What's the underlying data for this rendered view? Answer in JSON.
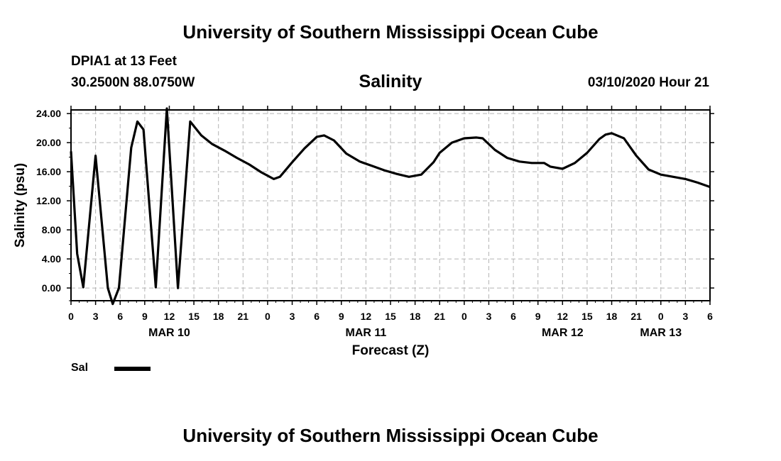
{
  "header": {
    "title_top": "University of Southern Mississippi Ocean Cube",
    "title_bottom": "University of Southern Mississippi Ocean Cube",
    "station": "DPIA1 at 13 Feet",
    "coords": "30.2500N 88.0750W",
    "datetime": "03/10/2020 Hour 21"
  },
  "legend": {
    "label": "Sal"
  },
  "chart_data": {
    "type": "line",
    "title": "Salinity",
    "xlabel": "Forecast (Z)",
    "ylabel": "Salinity (psu)",
    "ylim": [
      -1.75,
      24.5
    ],
    "xlim": [
      0,
      78
    ],
    "grid": true,
    "y_ticks": [
      "0.00",
      "4.00",
      "8.00",
      "12.00",
      "16.00",
      "20.00",
      "24.00"
    ],
    "x_ticks": [
      "0",
      "3",
      "6",
      "9",
      "12",
      "15",
      "18",
      "21",
      "0",
      "3",
      "6",
      "9",
      "12",
      "15",
      "18",
      "21",
      "0",
      "3",
      "6",
      "9",
      "12",
      "15",
      "18",
      "21",
      "0",
      "3",
      "6"
    ],
    "date_labels": [
      {
        "label": "MAR 10",
        "hour": 12
      },
      {
        "label": "MAR 11",
        "hour": 36
      },
      {
        "label": "MAR 12",
        "hour": 60
      },
      {
        "label": "MAR 13",
        "hour": 72
      }
    ],
    "series": [
      {
        "name": "Sal",
        "x": [
          0,
          0.75,
          1.5,
          3,
          4.5,
          5.1,
          5.85,
          7.35,
          8.1,
          8.85,
          10.35,
          11.7,
          13.05,
          14.55,
          15.9,
          17.25,
          18.75,
          20.25,
          21.75,
          23.25,
          24.75,
          25.5,
          27,
          28.5,
          30,
          30.9,
          32.1,
          33.6,
          35.25,
          36.75,
          38.25,
          39.75,
          41.25,
          42.75,
          44.25,
          45,
          46.5,
          48,
          49.5,
          50.25,
          51.75,
          53.25,
          54.75,
          56.25,
          57.75,
          58.5,
          60,
          61.5,
          63,
          64.5,
          65.25,
          66,
          67.5,
          69,
          70.5,
          72,
          73.5,
          75,
          76.5,
          78
        ],
        "y": [
          18.8,
          4.7,
          0.1,
          18.2,
          0.0,
          -2.2,
          0.0,
          19.3,
          22.9,
          21.8,
          0.1,
          24.7,
          0.0,
          22.9,
          21.0,
          19.8,
          18.9,
          17.9,
          17.0,
          15.9,
          15.0,
          15.3,
          17.3,
          19.2,
          20.8,
          21.0,
          20.3,
          18.5,
          17.4,
          16.8,
          16.2,
          15.7,
          15.3,
          15.6,
          17.3,
          18.6,
          20.0,
          20.6,
          20.7,
          20.6,
          19.0,
          17.9,
          17.4,
          17.2,
          17.2,
          16.7,
          16.4,
          17.2,
          18.6,
          20.5,
          21.1,
          21.3,
          20.6,
          18.2,
          16.3,
          15.6,
          15.3,
          15.0,
          14.5,
          13.9
        ]
      }
    ]
  }
}
